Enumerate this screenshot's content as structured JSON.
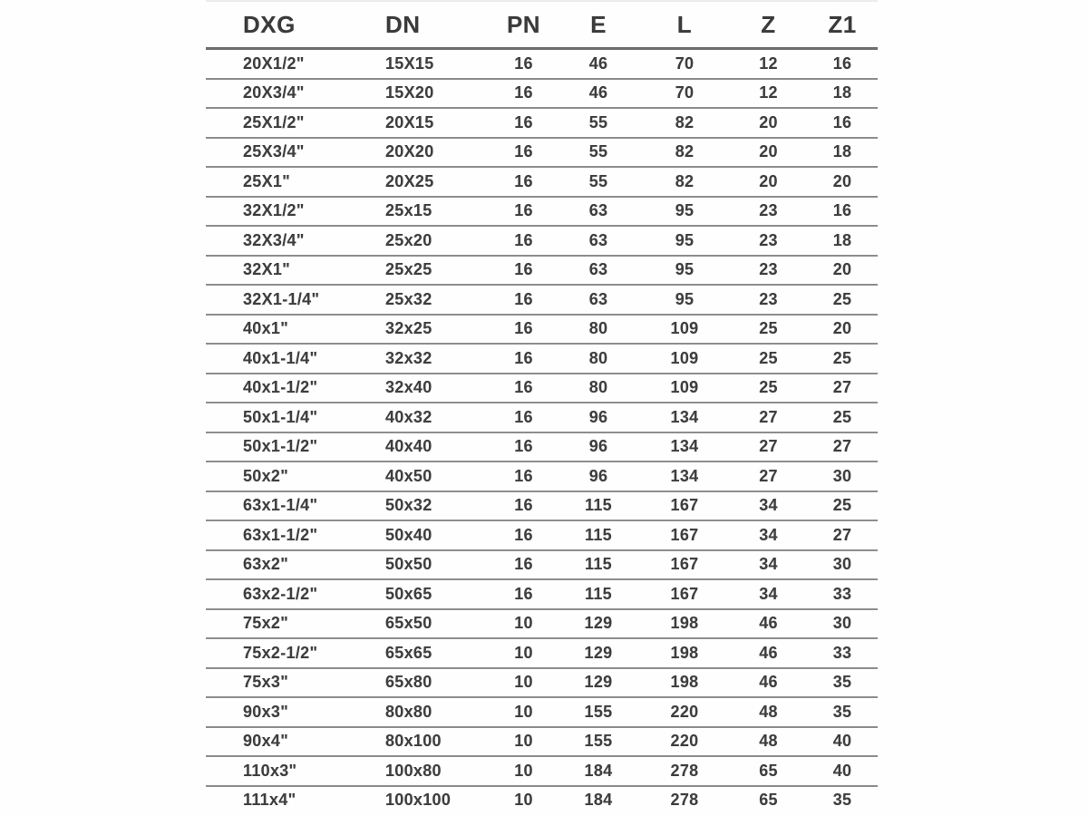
{
  "page": {
    "background_color": "#fefefe",
    "text_color": "#3e3e3e",
    "row_line_color": "#8d8d8d",
    "header_line_color": "#6e6e6e"
  },
  "chart_data": {
    "type": "table",
    "title": "",
    "columns": [
      "DXG",
      "DN",
      "PN",
      "E",
      "L",
      "Z",
      "Z1"
    ],
    "rows": [
      [
        "20X1/2\"",
        "15X15",
        "16",
        "46",
        "70",
        "12",
        "16"
      ],
      [
        "20X3/4\"",
        "15X20",
        "16",
        "46",
        "70",
        "12",
        "18"
      ],
      [
        "25X1/2\"",
        "20X15",
        "16",
        "55",
        "82",
        "20",
        "16"
      ],
      [
        "25X3/4\"",
        "20X20",
        "16",
        "55",
        "82",
        "20",
        "18"
      ],
      [
        "25X1\"",
        "20X25",
        "16",
        "55",
        "82",
        "20",
        "20"
      ],
      [
        "32X1/2\"",
        "25x15",
        "16",
        "63",
        "95",
        "23",
        "16"
      ],
      [
        "32X3/4\"",
        "25x20",
        "16",
        "63",
        "95",
        "23",
        "18"
      ],
      [
        "32X1\"",
        "25x25",
        "16",
        "63",
        "95",
        "23",
        "20"
      ],
      [
        "32X1-1/4\"",
        "25x32",
        "16",
        "63",
        "95",
        "23",
        "25"
      ],
      [
        "40x1\"",
        "32x25",
        "16",
        "80",
        "109",
        "25",
        "20"
      ],
      [
        "40x1-1/4\"",
        "32x32",
        "16",
        "80",
        "109",
        "25",
        "25"
      ],
      [
        "40x1-1/2\"",
        "32x40",
        "16",
        "80",
        "109",
        "25",
        "27"
      ],
      [
        "50x1-1/4\"",
        "40x32",
        "16",
        "96",
        "134",
        "27",
        "25"
      ],
      [
        "50x1-1/2\"",
        "40x40",
        "16",
        "96",
        "134",
        "27",
        "27"
      ],
      [
        "50x2\"",
        "40x50",
        "16",
        "96",
        "134",
        "27",
        "30"
      ],
      [
        "63x1-1/4\"",
        "50x32",
        "16",
        "115",
        "167",
        "34",
        "25"
      ],
      [
        "63x1-1/2\"",
        "50x40",
        "16",
        "115",
        "167",
        "34",
        "27"
      ],
      [
        "63x2\"",
        "50x50",
        "16",
        "115",
        "167",
        "34",
        "30"
      ],
      [
        "63x2-1/2\"",
        "50x65",
        "16",
        "115",
        "167",
        "34",
        "33"
      ],
      [
        "75x2\"",
        "65x50",
        "10",
        "129",
        "198",
        "46",
        "30"
      ],
      [
        "75x2-1/2\"",
        "65x65",
        "10",
        "129",
        "198",
        "46",
        "33"
      ],
      [
        "75x3\"",
        "65x80",
        "10",
        "129",
        "198",
        "46",
        "35"
      ],
      [
        "90x3\"",
        "80x80",
        "10",
        "155",
        "220",
        "48",
        "35"
      ],
      [
        "90x4\"",
        "80x100",
        "10",
        "155",
        "220",
        "48",
        "40"
      ],
      [
        "110x3\"",
        "100x80",
        "10",
        "184",
        "278",
        "65",
        "40"
      ],
      [
        "111x4\"",
        "100x100",
        "10",
        "184",
        "278",
        "65",
        "35"
      ]
    ]
  }
}
